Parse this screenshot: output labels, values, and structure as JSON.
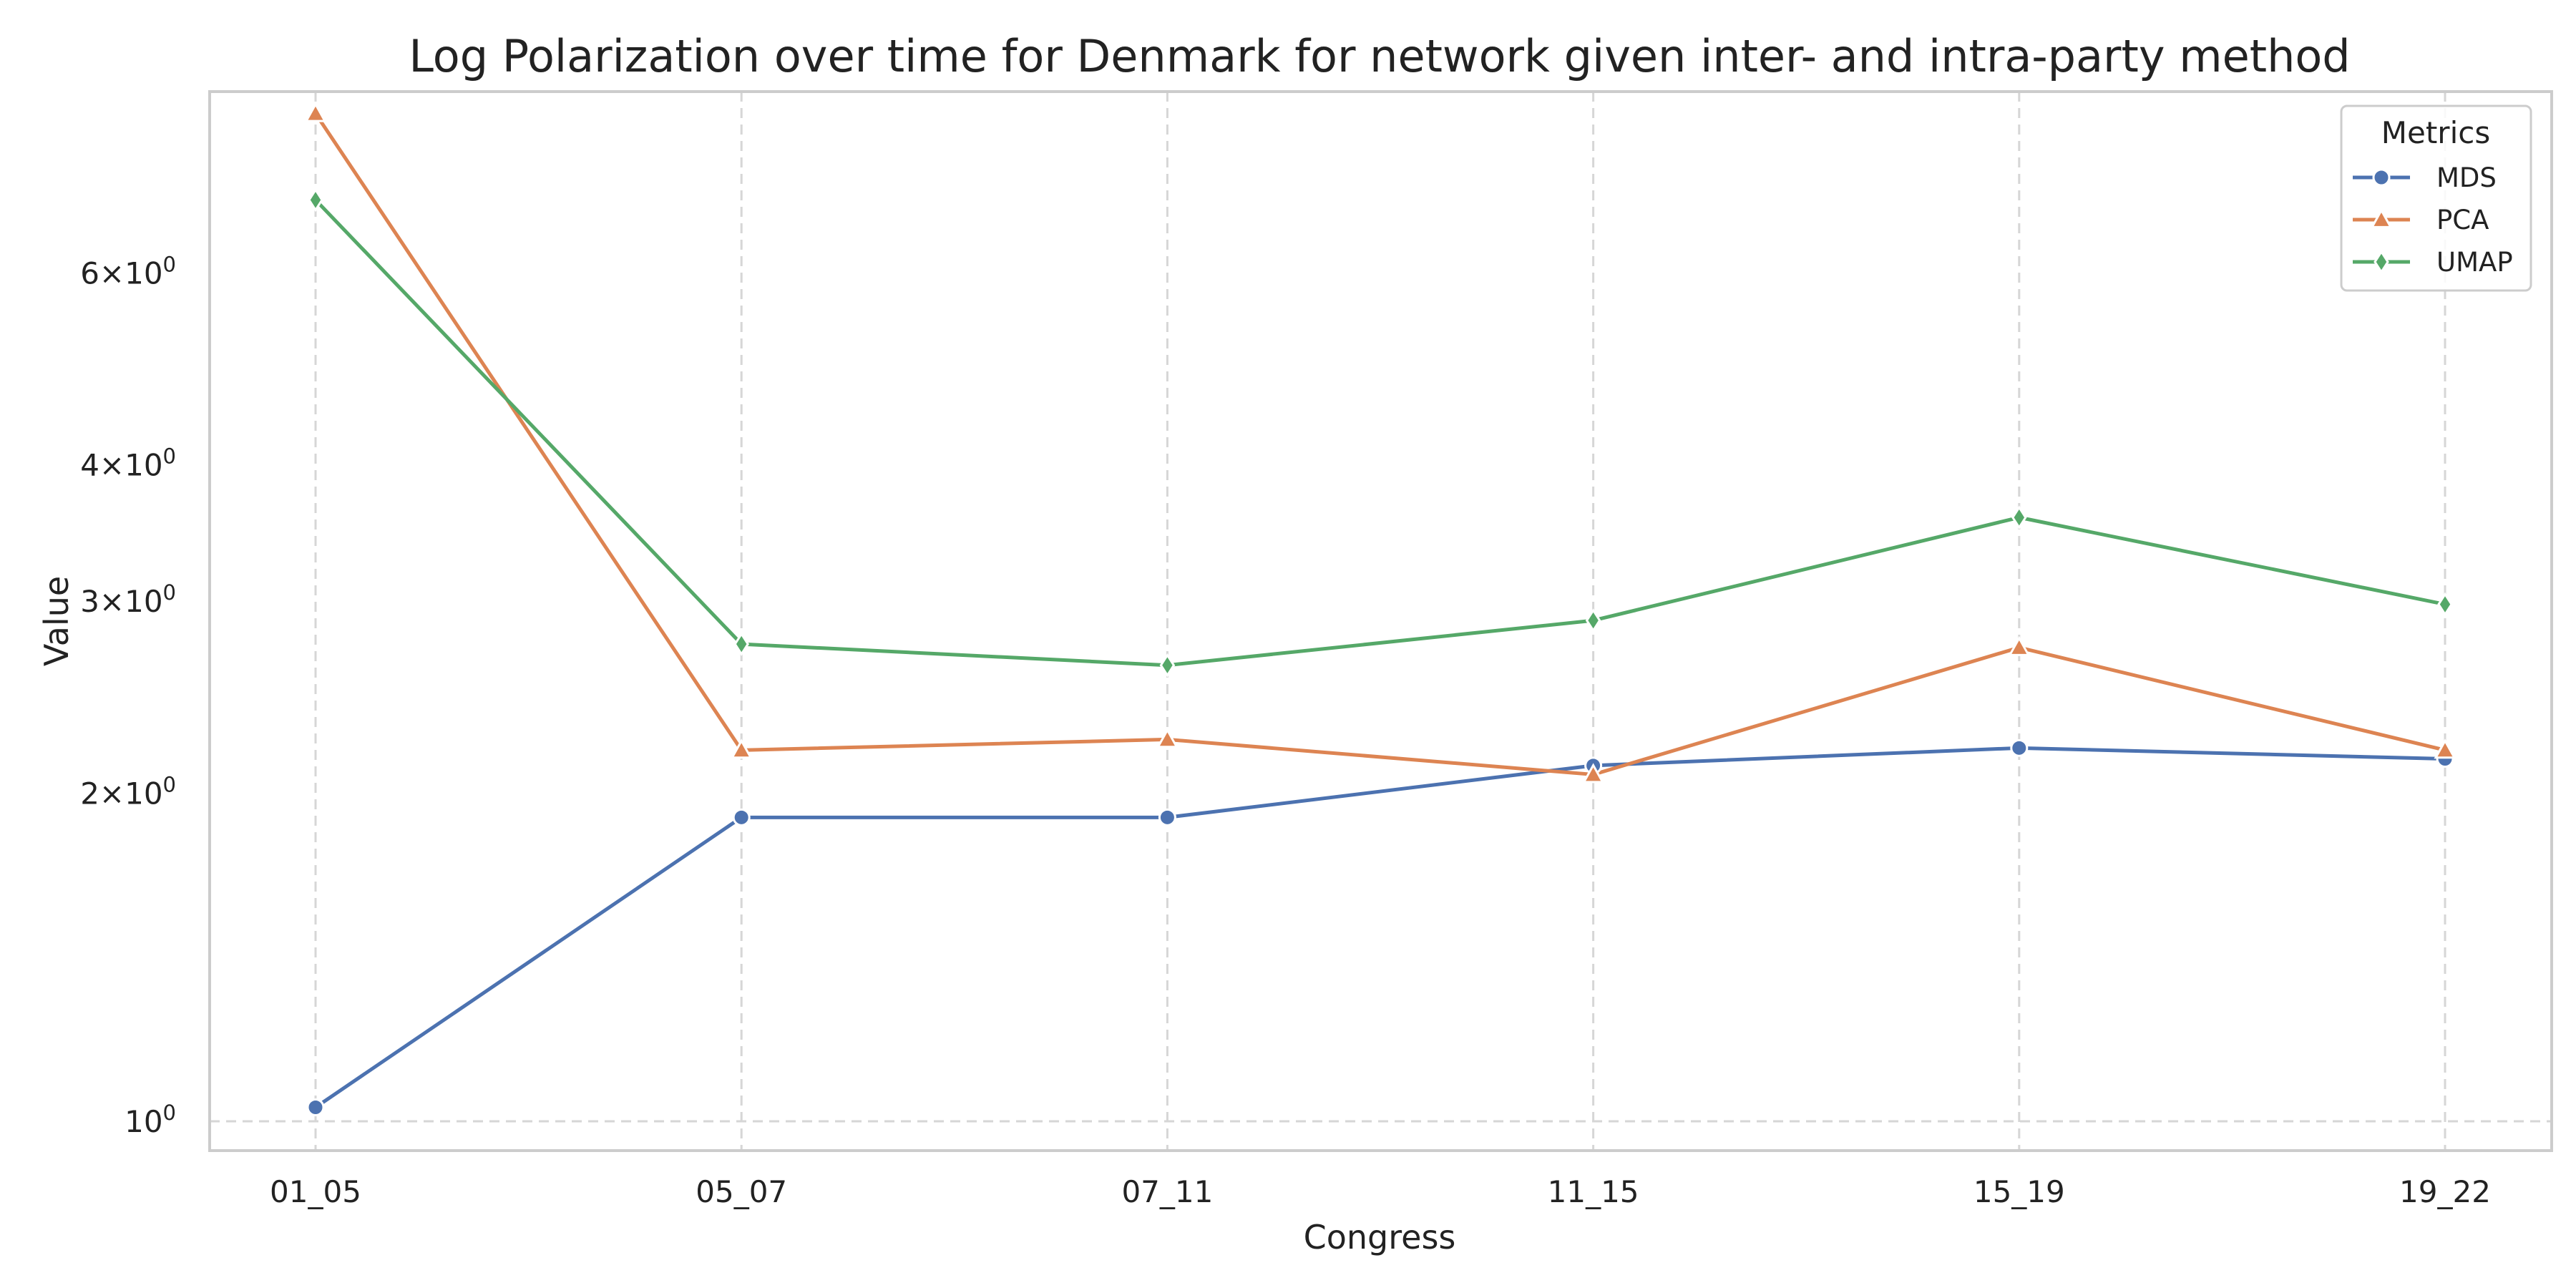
{
  "chart_data": {
    "type": "line",
    "title": "Log Polarization over time for Denmark for network given inter- and intra-party method",
    "xlabel": "Congress",
    "ylabel": "Value",
    "yscale": "log",
    "categories": [
      "01_05",
      "05_07",
      "07_11",
      "11_15",
      "15_19",
      "19_22"
    ],
    "yticks": [
      {
        "value": 1,
        "base": "10",
        "exp": "0"
      },
      {
        "value": 2,
        "base": "2×10",
        "exp": "0"
      },
      {
        "value": 3,
        "base": "3×10",
        "exp": "0"
      },
      {
        "value": 4,
        "base": "4×10",
        "exp": "0"
      },
      {
        "value": 6,
        "base": "6×10",
        "exp": "0"
      }
    ],
    "ylim": [
      0.94,
      8.8
    ],
    "grid": true,
    "legend": {
      "title": "Metrics",
      "position": "top-right"
    },
    "series": [
      {
        "name": "MDS",
        "color": "#4c72b0",
        "marker": "circle",
        "values": [
          1.03,
          1.9,
          1.9,
          2.12,
          2.2,
          2.15
        ]
      },
      {
        "name": "PCA",
        "color": "#dd8452",
        "marker": "triangle",
        "values": [
          8.4,
          2.19,
          2.24,
          2.08,
          2.72,
          2.19
        ]
      },
      {
        "name": "UMAP",
        "color": "#55a868",
        "marker": "diamond",
        "values": [
          7.0,
          2.74,
          2.62,
          2.88,
          3.58,
          2.98
        ]
      }
    ]
  }
}
